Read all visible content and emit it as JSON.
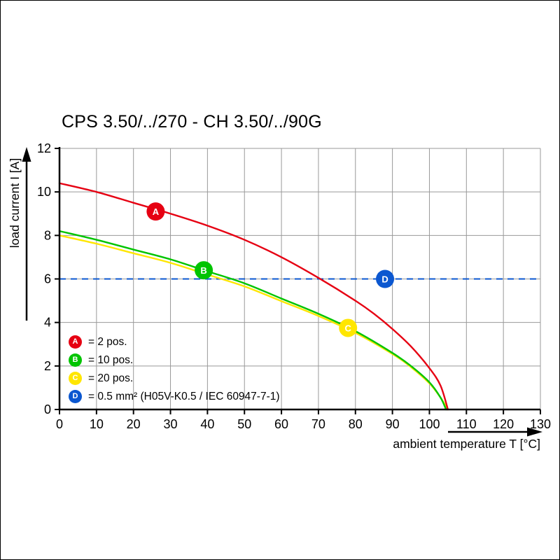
{
  "page": {
    "title": "CPS 3.50/../270 - CH 3.50/../90G"
  },
  "chart_data": {
    "type": "line",
    "title": "CPS 3.50/../270 - CH 3.50/../90G",
    "xlabel": "ambient temperature T [°C]",
    "ylabel": "load current I [A]",
    "xlim": [
      0,
      130
    ],
    "ylim": [
      0,
      12
    ],
    "xticks": [
      0,
      10,
      20,
      30,
      40,
      50,
      60,
      70,
      80,
      90,
      100,
      110,
      120,
      130
    ],
    "yticks": [
      0,
      2,
      4,
      6,
      8,
      10,
      12
    ],
    "grid": true,
    "grid_color": "#999999",
    "axis_color": "#000000",
    "legend_position": "bottom-left",
    "series": [
      {
        "id": "A",
        "name": "2 pos.",
        "color": "#e60012",
        "marker": {
          "x": 26,
          "y": 9.1
        },
        "points": [
          [
            0,
            10.4
          ],
          [
            10,
            10.0
          ],
          [
            20,
            9.5
          ],
          [
            30,
            9.0
          ],
          [
            40,
            8.45
          ],
          [
            50,
            7.8
          ],
          [
            60,
            7.0
          ],
          [
            70,
            6.05
          ],
          [
            80,
            5.0
          ],
          [
            85,
            4.4
          ],
          [
            90,
            3.7
          ],
          [
            95,
            2.9
          ],
          [
            100,
            1.9
          ],
          [
            103,
            1.1
          ],
          [
            105,
            0
          ]
        ]
      },
      {
        "id": "B",
        "name": "10 pos.",
        "color": "#00c400",
        "marker": {
          "x": 39,
          "y": 6.4
        },
        "points": [
          [
            0,
            8.2
          ],
          [
            10,
            7.8
          ],
          [
            20,
            7.35
          ],
          [
            30,
            6.9
          ],
          [
            40,
            6.35
          ],
          [
            50,
            5.8
          ],
          [
            60,
            5.1
          ],
          [
            70,
            4.4
          ],
          [
            80,
            3.6
          ],
          [
            90,
            2.6
          ],
          [
            95,
            2.0
          ],
          [
            100,
            1.25
          ],
          [
            103,
            0.55
          ],
          [
            104.5,
            0
          ]
        ]
      },
      {
        "id": "C",
        "name": "20 pos.",
        "color": "#ffe600",
        "marker": {
          "x": 78,
          "y": 3.75
        },
        "points": [
          [
            0,
            8.0
          ],
          [
            10,
            7.62
          ],
          [
            20,
            7.18
          ],
          [
            30,
            6.74
          ],
          [
            40,
            6.2
          ],
          [
            50,
            5.66
          ],
          [
            60,
            4.98
          ],
          [
            70,
            4.3
          ],
          [
            80,
            3.52
          ],
          [
            90,
            2.55
          ],
          [
            95,
            1.95
          ],
          [
            100,
            1.2
          ],
          [
            103,
            0.55
          ],
          [
            105,
            0
          ]
        ]
      }
    ],
    "reference_line": {
      "id": "D",
      "y": 6,
      "style": "dashed",
      "color": "#0b57d0",
      "marker": {
        "x": 88,
        "y": 6
      }
    },
    "legend": [
      {
        "id": "A",
        "color": "#e60012",
        "label": "= 2 pos."
      },
      {
        "id": "B",
        "color": "#00c400",
        "label": "= 10 pos."
      },
      {
        "id": "C",
        "color": "#ffe600",
        "label": "= 20 pos."
      },
      {
        "id": "D",
        "color": "#0b57d0",
        "label": "= 0.5 mm² (H05V-K0.5 / IEC 60947-7-1)"
      }
    ]
  }
}
